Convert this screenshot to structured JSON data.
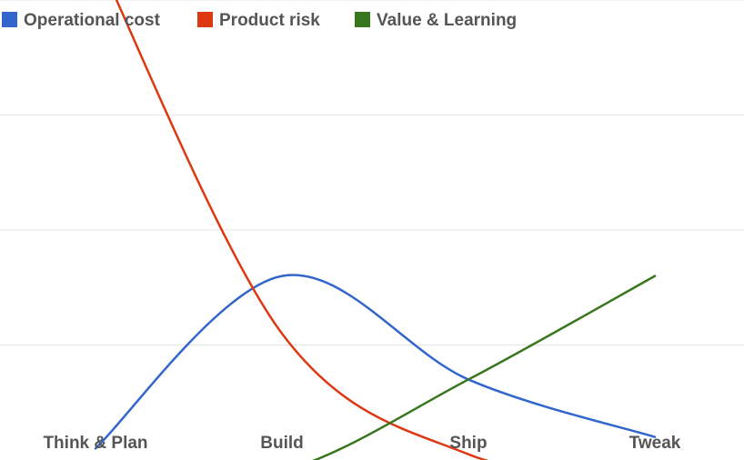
{
  "chart_data": {
    "type": "line",
    "title": "",
    "xlabel": "",
    "ylabel": "",
    "categories": [
      "Think & Plan",
      "Build",
      "Ship",
      "Tweak"
    ],
    "ylim": [
      0,
      4
    ],
    "grid": true,
    "legend_position": "top-left",
    "smooth": true,
    "series": [
      {
        "name": "Operational cost",
        "color": "#3366cc",
        "x": [
          0,
          1,
          2,
          3
        ],
        "values": [
          0.1,
          1.6,
          0.7,
          0.2
        ]
      },
      {
        "name": "Product risk",
        "color": "#dc3912",
        "x": [
          0,
          1,
          2,
          3
        ],
        "values": [
          4.4,
          1.1,
          0.05,
          -0.2
        ]
      },
      {
        "name": "Value & Learning",
        "color": "#38761d",
        "x": [
          0,
          1,
          2,
          3
        ],
        "values": [
          -0.2,
          -0.1,
          0.7,
          1.6
        ]
      }
    ]
  }
}
